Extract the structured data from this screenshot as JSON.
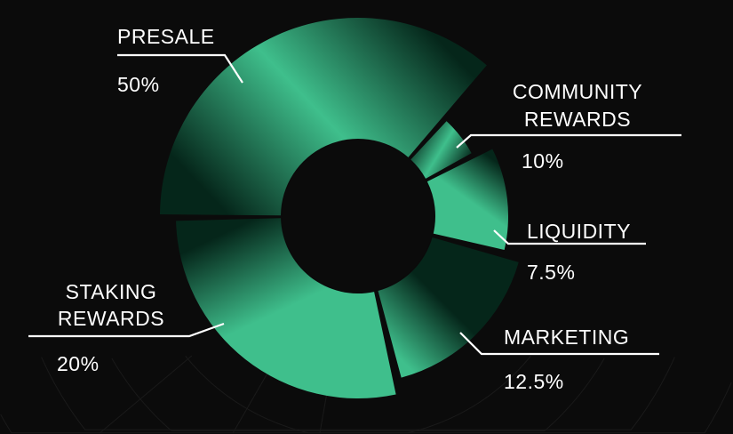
{
  "chart_data": {
    "type": "pie",
    "variant": "donut",
    "categories": [
      "PRESALE",
      "COMMUNITY REWARDS",
      "LIQUIDITY",
      "MARKETING",
      "STAKING REWARDS"
    ],
    "values": [
      50,
      10,
      7.5,
      12.5,
      20
    ],
    "value_labels": [
      "50%",
      "10%",
      "7.5%",
      "12.5%",
      "20%"
    ],
    "colors": {
      "light": "#3fbf8c",
      "dark": "#05261a",
      "background": "#0b0b0b",
      "text": "#ffffff"
    }
  },
  "labels": {
    "presale": {
      "name": "PRESALE",
      "value": "50%"
    },
    "community": {
      "line1": "COMMUNITY",
      "line2": "REWARDS",
      "value": "10%"
    },
    "liquidity": {
      "name": "LIQUIDITY",
      "value": "7.5%"
    },
    "marketing": {
      "name": "MARKETING",
      "value": "12.5%"
    },
    "staking": {
      "line1": "STAKING",
      "line2": "REWARDS",
      "value": "20%"
    }
  }
}
